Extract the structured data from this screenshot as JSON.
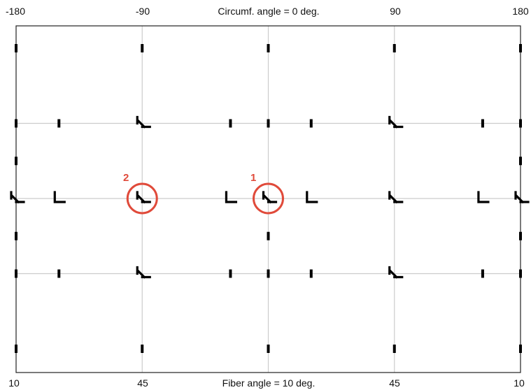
{
  "top_axis": {
    "ticks": [
      "-180",
      "-90",
      "90",
      "180"
    ],
    "label": "Circumf. angle = 0 deg."
  },
  "bottom_axis": {
    "ticks": [
      "10",
      "45",
      "45",
      "10"
    ],
    "label": "Fiber angle = 10 deg."
  },
  "highlights": [
    {
      "label": "2",
      "col": 1,
      "row": 2
    },
    {
      "label": "1",
      "col": 2,
      "row": 2
    }
  ],
  "grid_lines": {
    "columns": 3,
    "rows": 3
  },
  "colors": {
    "grid": "#cccccc",
    "frame": "#222222",
    "glyph": "#000000",
    "highlight": "#e04a3a"
  },
  "glyphs": [
    {
      "col": 0,
      "row": 0,
      "kind": "bar"
    },
    {
      "col": 1,
      "row": 0,
      "kind": "bar"
    },
    {
      "col": 2,
      "row": 0,
      "kind": "bar"
    },
    {
      "col": 3,
      "row": 0,
      "kind": "bar"
    },
    {
      "col": 4,
      "row": 0,
      "kind": "bar"
    },
    {
      "col": 0,
      "row": 1,
      "kind": "bar"
    },
    {
      "col": 0.34,
      "row": 1,
      "kind": "bar"
    },
    {
      "col": 1,
      "row": 1,
      "kind": "arrow"
    },
    {
      "col": 1.7,
      "row": 1,
      "kind": "bar"
    },
    {
      "col": 2,
      "row": 1,
      "kind": "bar"
    },
    {
      "col": 2.34,
      "row": 1,
      "kind": "bar"
    },
    {
      "col": 3,
      "row": 1,
      "kind": "arrow"
    },
    {
      "col": 3.7,
      "row": 1,
      "kind": "bar"
    },
    {
      "col": 4,
      "row": 1,
      "kind": "bar"
    },
    {
      "col": 0,
      "row": 1.5,
      "kind": "bar"
    },
    {
      "col": 4,
      "row": 1.5,
      "kind": "bar"
    },
    {
      "col": 0,
      "row": 2,
      "kind": "arrow"
    },
    {
      "col": 0.34,
      "row": 2,
      "kind": "corner"
    },
    {
      "col": 1,
      "row": 2,
      "kind": "arrow"
    },
    {
      "col": 1.7,
      "row": 2,
      "kind": "corner"
    },
    {
      "col": 2,
      "row": 2,
      "kind": "arrow"
    },
    {
      "col": 2.34,
      "row": 2,
      "kind": "corner"
    },
    {
      "col": 3,
      "row": 2,
      "kind": "arrow"
    },
    {
      "col": 3.7,
      "row": 2,
      "kind": "corner"
    },
    {
      "col": 4,
      "row": 2,
      "kind": "arrow"
    },
    {
      "col": 0,
      "row": 2.5,
      "kind": "bar"
    },
    {
      "col": 2,
      "row": 2.5,
      "kind": "bar"
    },
    {
      "col": 4,
      "row": 2.5,
      "kind": "bar"
    },
    {
      "col": 0,
      "row": 3,
      "kind": "bar"
    },
    {
      "col": 0.34,
      "row": 3,
      "kind": "bar"
    },
    {
      "col": 1,
      "row": 3,
      "kind": "arrow"
    },
    {
      "col": 1.7,
      "row": 3,
      "kind": "bar"
    },
    {
      "col": 2,
      "row": 3,
      "kind": "bar"
    },
    {
      "col": 2.34,
      "row": 3,
      "kind": "bar"
    },
    {
      "col": 3,
      "row": 3,
      "kind": "arrow"
    },
    {
      "col": 3.7,
      "row": 3,
      "kind": "bar"
    },
    {
      "col": 4,
      "row": 3,
      "kind": "bar"
    },
    {
      "col": 0,
      "row": 4,
      "kind": "bar"
    },
    {
      "col": 1,
      "row": 4,
      "kind": "bar"
    },
    {
      "col": 2,
      "row": 4,
      "kind": "bar"
    },
    {
      "col": 3,
      "row": 4,
      "kind": "bar"
    },
    {
      "col": 4,
      "row": 4,
      "kind": "bar"
    }
  ]
}
